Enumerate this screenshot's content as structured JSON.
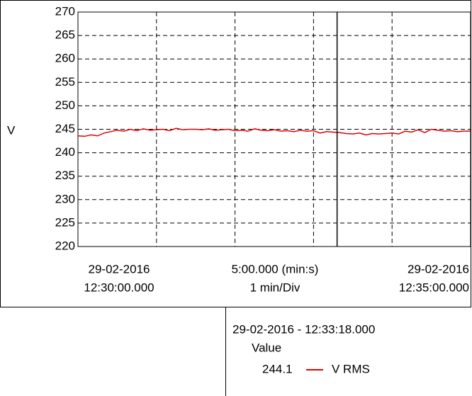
{
  "chart_data": {
    "type": "line",
    "ylabel": "V",
    "x_start": [
      "29-02-2016",
      "12:30:00.000"
    ],
    "x_span": "5:00.000 (min:s)",
    "x_div": "1 min/Div",
    "x_end": [
      "29-02-2016",
      "12:35:00.000"
    ],
    "x": [
      0,
      5,
      10,
      15,
      20,
      25,
      30,
      35,
      40,
      45,
      50,
      55,
      60,
      65,
      70,
      75,
      80,
      85,
      90,
      95,
      100,
      105,
      110,
      115,
      120,
      125,
      130,
      135,
      140,
      145,
      150,
      155,
      160,
      165,
      170,
      175,
      180,
      185,
      190,
      195,
      200,
      205,
      210,
      215,
      220,
      225,
      230,
      235,
      240,
      245,
      250,
      255,
      260,
      265,
      270,
      275,
      280,
      285,
      290,
      295,
      300
    ],
    "series": [
      {
        "name": "V RMS",
        "color": "#e00000",
        "values": [
          243.6,
          243.5,
          243.8,
          243.6,
          244.2,
          244.5,
          244.8,
          244.6,
          245.0,
          244.7,
          245.1,
          244.8,
          244.9,
          245.0,
          244.7,
          245.2,
          244.9,
          245.0,
          245.0,
          244.9,
          245.1,
          244.8,
          244.9,
          245.0,
          244.7,
          244.8,
          244.6,
          245.1,
          244.8,
          244.7,
          244.9,
          244.6,
          244.7,
          244.5,
          244.8,
          244.6,
          244.7,
          244.2,
          244.5,
          244.4,
          244.3,
          244.1,
          244.0,
          244.2,
          243.8,
          244.1,
          244.0,
          244.1,
          244.2,
          244.0,
          244.6,
          244.4,
          244.9,
          244.3,
          245.0,
          244.8,
          244.6,
          244.7,
          244.5,
          244.6,
          244.6
        ]
      }
    ],
    "xlim": [
      0,
      300
    ],
    "xticks": [
      60,
      120,
      180,
      240
    ],
    "ylim": [
      220,
      270
    ],
    "yticks": [
      220,
      225,
      230,
      235,
      240,
      245,
      250,
      255,
      260,
      265,
      270
    ],
    "grid": true,
    "cursor": {
      "x": 198,
      "label": "29-02-2016 - 12:33:18.000",
      "header": "Value",
      "value": 244.1
    }
  }
}
